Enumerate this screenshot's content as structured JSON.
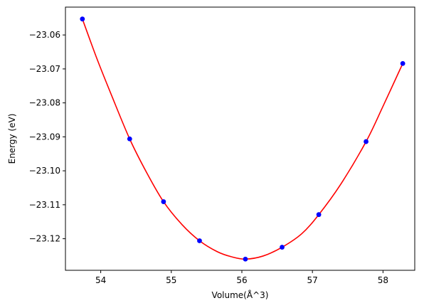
{
  "chart_data": {
    "type": "scatter",
    "title": "",
    "xlabel": "Volume(Å^3)",
    "ylabel": "Energy (eV)",
    "xlim": [
      53.5,
      58.45
    ],
    "ylim": [
      -23.1293,
      -23.0518
    ],
    "xticks": [
      54,
      55,
      56,
      57,
      58
    ],
    "xtick_labels": [
      "54",
      "55",
      "56",
      "57",
      "58"
    ],
    "yticks": [
      -23.12,
      -23.11,
      -23.1,
      -23.09,
      -23.08,
      -23.07,
      -23.06
    ],
    "ytick_labels": [
      "−23.12",
      "−23.11",
      "−23.10",
      "−23.09",
      "−23.08",
      "−23.07",
      "−23.06"
    ],
    "grid": false,
    "series": [
      {
        "kind": "points",
        "color": "#0000ff",
        "marker": "circle",
        "x": [
          53.74,
          54.41,
          54.89,
          55.4,
          56.05,
          56.57,
          57.09,
          57.76,
          58.28
        ],
        "y": [
          -23.0553,
          -23.0906,
          -23.1091,
          -23.1206,
          -23.126,
          -23.1225,
          -23.1129,
          -23.0914,
          -23.0684
        ]
      },
      {
        "kind": "fit-curve",
        "color": "#ff0000",
        "x": [
          53.74,
          53.95,
          54.15,
          54.41,
          54.65,
          54.89,
          55.15,
          55.4,
          55.65,
          55.85,
          56.05,
          56.3,
          56.57,
          56.85,
          57.09,
          57.4,
          57.76,
          58.0,
          58.28
        ],
        "y": [
          -23.0553,
          -23.0672,
          -23.0776,
          -23.0906,
          -23.1005,
          -23.1091,
          -23.1158,
          -23.1206,
          -23.1238,
          -23.1253,
          -23.126,
          -23.1251,
          -23.1225,
          -23.1185,
          -23.1129,
          -23.104,
          -23.0914,
          -23.081,
          -23.0684
        ]
      }
    ]
  }
}
